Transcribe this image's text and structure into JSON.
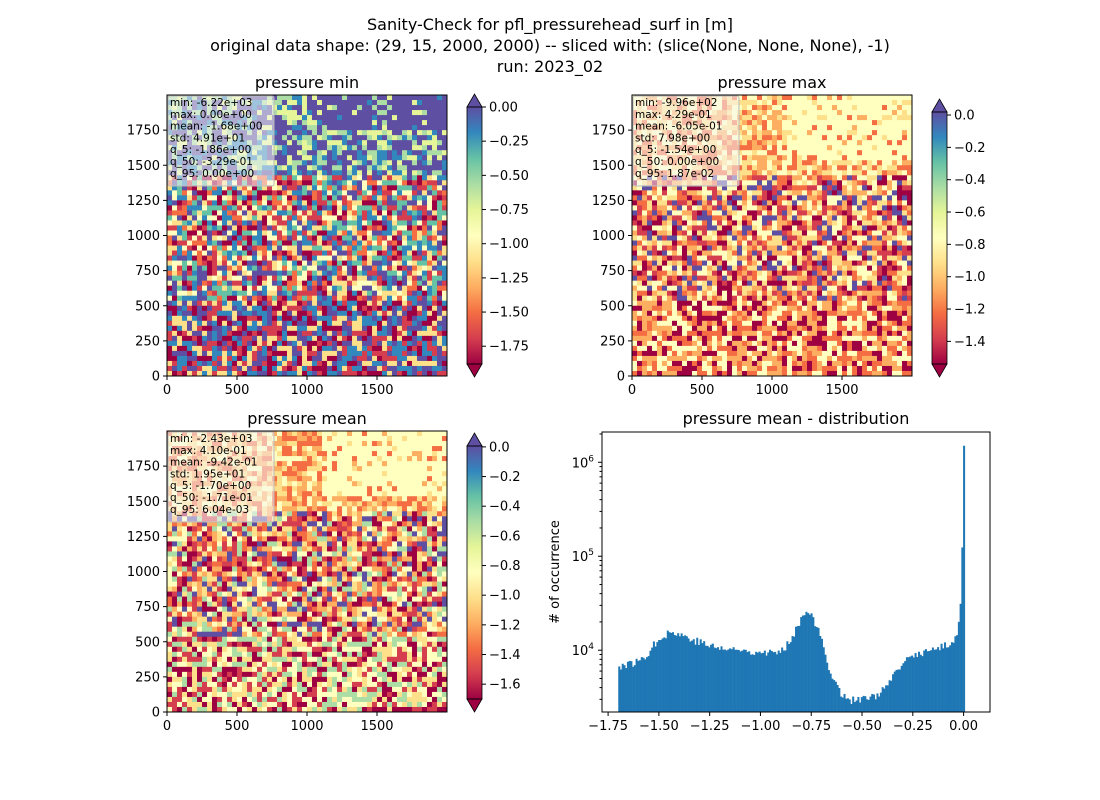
{
  "figure": {
    "title_lines": [
      "Sanity-Check for pfl_pressurehead_surf in [m]",
      "original data shape: (29, 15, 2000, 2000) -- sliced with: (slice(None, None, None), -1)",
      "run: 2023_02"
    ]
  },
  "colormap": {
    "name": "Spectral",
    "stops": [
      "#9e0142",
      "#d53e4f",
      "#f46d43",
      "#fdae61",
      "#fee08b",
      "#ffffbf",
      "#e6f598",
      "#abdda4",
      "#66c2a5",
      "#3288bd",
      "#5e4fa2"
    ],
    "over_color": "#5e4fa2",
    "under_color": "#9e0142"
  },
  "chart_data": [
    {
      "type": "heatmap",
      "title": "pressure min",
      "x_ticks": [
        "0",
        "500",
        "1000",
        "1500"
      ],
      "y_ticks": [
        "0",
        "250",
        "500",
        "750",
        "1000",
        "1250",
        "1500",
        "1750"
      ],
      "xlim": [
        0,
        2000
      ],
      "ylim": [
        0,
        2000
      ],
      "colorbar": {
        "range": [
          -1.88,
          0.0
        ],
        "ticks": [
          0.0,
          -0.25,
          -0.5,
          -0.75,
          -1.0,
          -1.25,
          -1.5,
          -1.75
        ],
        "tick_labels": [
          "0.00",
          "−0.25",
          "−0.50",
          "−0.75",
          "−1.00",
          "−1.25",
          "−1.50",
          "−1.75"
        ],
        "extend": "both"
      },
      "stats": [
        "min: -6.22e+03",
        "max: 0.00e+00",
        "mean: -1.68e+00",
        "std: 4.91e+01",
        "q_5: -1.86e+00",
        "q_50: -3.29e-01",
        "q_95: 0.00e+00"
      ]
    },
    {
      "type": "heatmap",
      "title": "pressure max",
      "x_ticks": [
        "0",
        "500",
        "1000",
        "1500"
      ],
      "y_ticks": [
        "0",
        "250",
        "500",
        "750",
        "1000",
        "1250",
        "1500",
        "1750"
      ],
      "xlim": [
        0,
        2000
      ],
      "ylim": [
        0,
        2000
      ],
      "colorbar": {
        "range": [
          -1.54,
          0.0187
        ],
        "ticks": [
          0.0,
          -0.2,
          -0.4,
          -0.6,
          -0.8,
          -1.0,
          -1.2,
          -1.4
        ],
        "tick_labels": [
          "0.0",
          "−0.2",
          "−0.4",
          "−0.6",
          "−0.8",
          "−1.0",
          "−1.2",
          "−1.4"
        ],
        "extend": "both"
      },
      "stats": [
        "min: -9.96e+02",
        "max: 4.29e-01",
        "mean: -6.05e-01",
        "std: 7.98e+00",
        "q_5: -1.54e+00",
        "q_50: 0.00e+00",
        "q_95: 1.87e-02"
      ]
    },
    {
      "type": "heatmap",
      "title": "pressure mean",
      "x_ticks": [
        "0",
        "500",
        "1000",
        "1500"
      ],
      "y_ticks": [
        "0",
        "250",
        "500",
        "750",
        "1000",
        "1250",
        "1500",
        "1750"
      ],
      "xlim": [
        0,
        2000
      ],
      "ylim": [
        0,
        2000
      ],
      "colorbar": {
        "range": [
          -1.7,
          0.006
        ],
        "ticks": [
          0.0,
          -0.2,
          -0.4,
          -0.6,
          -0.8,
          -1.0,
          -1.2,
          -1.4,
          -1.6
        ],
        "tick_labels": [
          "0.0",
          "−0.2",
          "−0.4",
          "−0.6",
          "−0.8",
          "−1.0",
          "−1.2",
          "−1.4",
          "−1.6"
        ],
        "extend": "both"
      },
      "stats": [
        "min: -2.43e+03",
        "max: 4.10e-01",
        "mean: -9.42e-01",
        "std: 1.95e+01",
        "q_5: -1.70e+00",
        "q_50: -1.71e-01",
        "q_95: 6.04e-03"
      ]
    },
    {
      "type": "bar",
      "title": "pressure mean - distribution",
      "ylabel": "# of occurrence",
      "xlabel": "",
      "log_y": true,
      "xlim": [
        -1.78,
        0.13
      ],
      "ylim": [
        2200,
        2100000
      ],
      "x_ticks": [
        -1.75,
        -1.5,
        -1.25,
        -1.0,
        -0.75,
        -0.5,
        -0.25,
        0.0
      ],
      "x_tick_labels": [
        "−1.75",
        "−1.50",
        "−1.25",
        "−1.00",
        "−0.75",
        "−0.50",
        "−0.25",
        "0.00"
      ],
      "y_ticks": [
        10000,
        100000,
        1000000
      ],
      "y_tick_labels": [
        "10^4",
        "10^5",
        "10^6"
      ],
      "bar_color": "#1f77b4",
      "bin_range": [
        -1.7,
        0.006
      ],
      "bins": 200,
      "profile_x": [
        -1.7,
        -1.66,
        -1.6,
        -1.55,
        -1.5,
        -1.45,
        -1.4,
        -1.35,
        -1.3,
        -1.25,
        -1.2,
        -1.15,
        -1.1,
        -1.05,
        -1.0,
        -0.95,
        -0.9,
        -0.86,
        -0.83,
        -0.81,
        -0.79,
        -0.77,
        -0.75,
        -0.72,
        -0.7,
        -0.68,
        -0.65,
        -0.62,
        -0.6,
        -0.57,
        -0.55,
        -0.52,
        -0.5,
        -0.45,
        -0.4,
        -0.35,
        -0.3,
        -0.25,
        -0.2,
        -0.15,
        -0.1,
        -0.05,
        -0.03,
        -0.02,
        -0.01,
        0.0
      ],
      "profile_y": [
        6800,
        7000,
        7600,
        9500,
        13500,
        15500,
        14800,
        13500,
        12200,
        11200,
        10500,
        10200,
        10000,
        9800,
        9800,
        9500,
        9300,
        12500,
        16000,
        19500,
        24500,
        28000,
        23500,
        17000,
        13000,
        8800,
        5500,
        4000,
        3400,
        3050,
        2950,
        3000,
        3000,
        3150,
        3700,
        5000,
        7200,
        8800,
        9500,
        10100,
        10900,
        12500,
        15500,
        24000,
        37000,
        1500000
      ]
    }
  ]
}
